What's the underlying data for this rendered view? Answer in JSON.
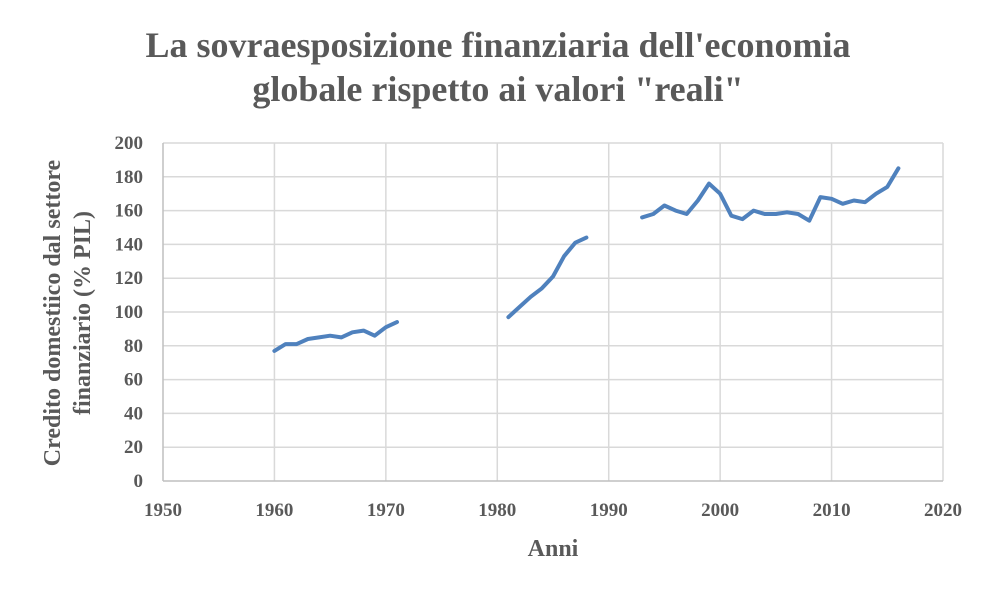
{
  "chart_data": {
    "type": "line",
    "title_lines": [
      "La sovraesposizione finanziaria dell'economia",
      "globale rispetto ai valori \"reali\""
    ],
    "xlabel": "Anni",
    "ylabel_lines": [
      "Credito domestiico dal settore",
      "finanziario (% PIL)"
    ],
    "xlim": [
      1950,
      2020
    ],
    "ylim": [
      0,
      200
    ],
    "xticks": [
      1950,
      1960,
      1970,
      1980,
      1990,
      2000,
      2010,
      2020
    ],
    "yticks": [
      0,
      20,
      40,
      60,
      80,
      100,
      120,
      140,
      160,
      180,
      200
    ],
    "grid": true,
    "legend": "none",
    "series_color": "#4f81bd",
    "segments": [
      {
        "x": [
          1960,
          1961,
          1962,
          1963,
          1964,
          1965,
          1966,
          1967,
          1968,
          1969,
          1970,
          1971
        ],
        "y": [
          77,
          81,
          81,
          84,
          85,
          86,
          85,
          88,
          89,
          86,
          91,
          94
        ]
      },
      {
        "x": [
          1981,
          1982,
          1983,
          1984,
          1985,
          1986,
          1987,
          1988
        ],
        "y": [
          97,
          103,
          109,
          114,
          121,
          133,
          141,
          144
        ]
      },
      {
        "x": [
          1993,
          1994,
          1995,
          1996,
          1997,
          1998,
          1999,
          2000,
          2001,
          2002,
          2003,
          2004,
          2005,
          2006,
          2007,
          2008,
          2009,
          2010,
          2011,
          2012,
          2013,
          2014,
          2015,
          2016
        ],
        "y": [
          156,
          158,
          163,
          160,
          158,
          166,
          176,
          170,
          157,
          155,
          160,
          158,
          158,
          159,
          158,
          154,
          168,
          167,
          164,
          166,
          165,
          170,
          174,
          185
        ]
      }
    ]
  }
}
